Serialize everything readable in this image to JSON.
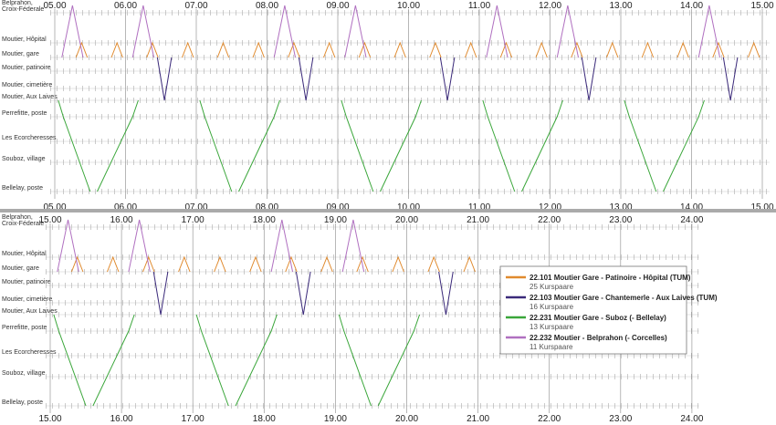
{
  "panels": [
    {
      "hours": [
        "05.00",
        "06.00",
        "07.00",
        "08.00",
        "09.00",
        "10.00",
        "11.00",
        "12.00",
        "13.00",
        "14.00",
        "15.00"
      ]
    },
    {
      "hours": [
        "15.00",
        "16.00",
        "17.00",
        "18.00",
        "19.00",
        "20.00",
        "21.00",
        "22.00",
        "23.00",
        "24.00"
      ]
    }
  ],
  "stations": [
    [
      "Belprahon,",
      "Croix-Féderale"
    ],
    [
      "Moutier, Hôpital"
    ],
    [
      "Moutier, gare"
    ],
    [
      "Moutier, patinoire"
    ],
    [
      "Moutier, cimetière"
    ],
    [
      "Moutier, Aux Laives"
    ],
    [
      "Perrefitte, poste"
    ],
    [
      "Les Ecorcheresses"
    ],
    [
      "Souboz, village"
    ],
    [
      "Bellelay, poste"
    ]
  ],
  "legend": [
    {
      "name": "22.101 Moutier Gare - Patinoire - Hôpital (TUM)",
      "count": "25 Kurspaare",
      "color": "#e08a2e"
    },
    {
      "name": "22.103 Moutier Gare - Chantemerle - Aux Laives (TUM)",
      "count": "16 Kurspaare",
      "color": "#3b2a7a"
    },
    {
      "name": "22.231 Moutier Gare - Suboz (- Bellelay)",
      "count": "13 Kurspaare",
      "color": "#3aa63a"
    },
    {
      "name": "22.232 Moutier - Belprahon (- Corcelles)",
      "count": "11 Kurspaare",
      "color": "#b070c0"
    }
  ]
}
